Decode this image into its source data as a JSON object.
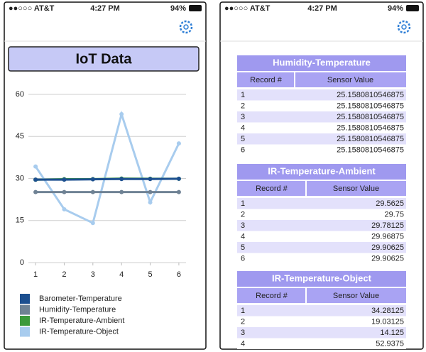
{
  "left_screen": {
    "status_bar": {
      "carrier": "●●○○○ AT&T",
      "time": "4:27 PM",
      "battery": "94%"
    },
    "title": "IoT Data"
  },
  "chart_data": {
    "type": "line",
    "x": [
      1,
      2,
      3,
      4,
      5,
      6
    ],
    "xlim": [
      0.75,
      6.25
    ],
    "xticks": [
      1,
      2,
      3,
      4,
      5,
      6
    ],
    "ylim": [
      0,
      60
    ],
    "yticks": [
      0,
      15,
      30,
      45,
      60
    ],
    "grid": true,
    "series": [
      {
        "name": "Barometer-Temperature",
        "color": "#1c4f8f",
        "values": [
          29.6,
          29.6,
          29.7,
          29.8,
          29.8,
          29.9
        ]
      },
      {
        "name": "Humidity-Temperature",
        "color": "#6f8294",
        "values": [
          25.16,
          25.16,
          25.16,
          25.16,
          25.16,
          25.16
        ]
      },
      {
        "name": "IR-Temperature-Ambient",
        "color": "#3c9a3c",
        "values": [
          29.5625,
          29.75,
          29.78125,
          29.96875,
          29.90625,
          29.90625
        ]
      },
      {
        "name": "IR-Temperature-Object",
        "color": "#a8ccee",
        "values": [
          34.28125,
          19.03125,
          14.125,
          52.9375,
          21.5,
          42.5
        ]
      }
    ]
  },
  "right_screen": {
    "status_bar": {
      "carrier": "●●○○○ AT&T",
      "time": "4:27 PM",
      "battery": "94%"
    },
    "tables": [
      {
        "title": "Humidity-Temperature",
        "columns": [
          "Record #",
          "Sensor Value"
        ],
        "rows": [
          [
            "1",
            "25.1580810546875"
          ],
          [
            "2",
            "25.1580810546875"
          ],
          [
            "3",
            "25.1580810546875"
          ],
          [
            "4",
            "25.1580810546875"
          ],
          [
            "5",
            "25.1580810546875"
          ],
          [
            "6",
            "25.1580810546875"
          ]
        ]
      },
      {
        "title": "IR-Temperature-Ambient",
        "columns": [
          "Record #",
          "Sensor Value"
        ],
        "rows": [
          [
            "1",
            "29.5625"
          ],
          [
            "2",
            "29.75"
          ],
          [
            "3",
            "29.78125"
          ],
          [
            "4",
            "29.96875"
          ],
          [
            "5",
            "29.90625"
          ],
          [
            "6",
            "29.90625"
          ]
        ]
      },
      {
        "title": "IR-Temperature-Object",
        "columns": [
          "Record #",
          "Sensor Value"
        ],
        "rows": [
          [
            "1",
            "34.28125"
          ],
          [
            "2",
            "19.03125"
          ],
          [
            "3",
            "14.125"
          ],
          [
            "4",
            "52.9375"
          ]
        ]
      }
    ]
  }
}
